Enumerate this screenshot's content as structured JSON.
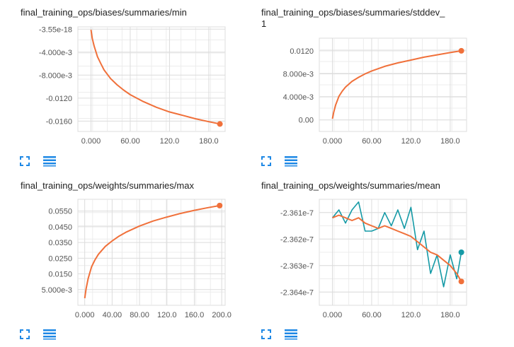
{
  "colors": {
    "smoothed": "#f0703a",
    "raw": "#f0703a",
    "teal": "#159aa6",
    "grid": "#dcdcdc",
    "icon": "#1e88e5"
  },
  "icons": {
    "expand": "fullscreen-icon",
    "data": "list-icon"
  },
  "charts": [
    {
      "title": "final_training_ops/biases/summaries/min"
    },
    {
      "title": "final_training_ops/biases/summaries/stddev_",
      "title2": "1"
    },
    {
      "title": "final_training_ops/weights/summaries/max"
    },
    {
      "title": "final_training_ops/weights/summaries/mean"
    }
  ],
  "chart_data": [
    {
      "type": "line",
      "title": "final_training_ops/biases/summaries/min",
      "xlim": [
        -20,
        205
      ],
      "ylim": [
        -0.0178,
        0.0004
      ],
      "xticks": [
        0,
        60,
        120,
        180
      ],
      "xtick_labels": [
        "0.000",
        "60.00",
        "120.0",
        "180.0"
      ],
      "yticks": [
        -3.55e-18,
        -0.004,
        -0.008,
        -0.012,
        -0.016
      ],
      "ytick_labels": [
        "-3.55e-18",
        "-4.000e-3",
        "-8.000e-3",
        "-0.0120",
        "-0.0160"
      ],
      "series": [
        {
          "x": [
            0,
            2,
            5,
            10,
            15,
            20,
            30,
            40,
            50,
            60,
            80,
            100,
            120,
            140,
            160,
            180,
            197
          ],
          "y": [
            -0.0001,
            -0.0016,
            -0.003,
            -0.0048,
            -0.006,
            -0.0071,
            -0.0086,
            -0.0097,
            -0.0106,
            -0.0114,
            -0.0126,
            -0.0136,
            -0.0144,
            -0.015,
            -0.0156,
            -0.0161,
            -0.0165
          ]
        }
      ]
    },
    {
      "type": "line",
      "title": "final_training_ops/biases/summaries/stddev_1",
      "xlim": [
        -20,
        205
      ],
      "ylim": [
        -0.002,
        0.0142
      ],
      "xticks": [
        0,
        60,
        120,
        180
      ],
      "xtick_labels": [
        "0.000",
        "60.00",
        "120.0",
        "180.0"
      ],
      "yticks": [
        0,
        0.004,
        0.008,
        0.012
      ],
      "ytick_labels": [
        "0.00",
        "4.000e-3",
        "8.000e-3",
        "0.0120"
      ],
      "series": [
        {
          "x": [
            0,
            2,
            5,
            10,
            15,
            20,
            30,
            40,
            50,
            60,
            80,
            100,
            120,
            140,
            160,
            180,
            197
          ],
          "y": [
            0.0002,
            0.0013,
            0.0026,
            0.0041,
            0.005,
            0.0057,
            0.0067,
            0.0074,
            0.008,
            0.0085,
            0.0093,
            0.0099,
            0.0104,
            0.0109,
            0.0113,
            0.0117,
            0.012
          ]
        }
      ]
    },
    {
      "type": "line",
      "title": "final_training_ops/weights/summaries/max",
      "xlim": [
        -10,
        205
      ],
      "ylim": [
        -0.005,
        0.0625
      ],
      "xticks": [
        0,
        40,
        80,
        120,
        160,
        200
      ],
      "xtick_labels": [
        "0.000",
        "40.00",
        "80.00",
        "120.0",
        "160.0",
        "200.0"
      ],
      "yticks": [
        0.005,
        0.015,
        0.025,
        0.035,
        0.045,
        0.055
      ],
      "ytick_labels": [
        "5.000e-3",
        "0.0150",
        "0.0250",
        "0.0350",
        "0.0450",
        "0.0550"
      ],
      "series": [
        {
          "x": [
            0,
            2,
            5,
            10,
            15,
            20,
            30,
            40,
            50,
            60,
            80,
            100,
            120,
            140,
            160,
            180,
            197
          ],
          "y": [
            -0.0005,
            0.0055,
            0.012,
            0.0195,
            0.024,
            0.0275,
            0.0325,
            0.036,
            0.039,
            0.0415,
            0.0455,
            0.0487,
            0.0512,
            0.0535,
            0.0555,
            0.0572,
            0.0585
          ]
        }
      ]
    },
    {
      "type": "line",
      "title": "final_training_ops/weights/summaries/mean",
      "xlim": [
        -20,
        205
      ],
      "ylim": [
        -2.3645e-07,
        -2.3605e-07
      ],
      "xticks": [
        0,
        60,
        120,
        180
      ],
      "xtick_labels": [
        "0.000",
        "60.00",
        "120.0",
        "180.0"
      ],
      "yticks": [
        -2.361e-07,
        -2.362e-07,
        -2.363e-07,
        -2.364e-07
      ],
      "ytick_labels": [
        "-2.361e-7",
        "-2.362e-7",
        "-2.363e-7",
        "-2.364e-7"
      ],
      "series": [
        {
          "name": "raw",
          "x": [
            0,
            10,
            20,
            30,
            40,
            50,
            60,
            70,
            80,
            90,
            100,
            110,
            120,
            130,
            140,
            150,
            160,
            170,
            180,
            190,
            197
          ],
          "y": [
            -2.3612e-07,
            -2.3609e-07,
            -2.3614e-07,
            -2.3609e-07,
            -2.3606e-07,
            -2.3617e-07,
            -2.3617e-07,
            -2.3616e-07,
            -2.361e-07,
            -2.3615e-07,
            -2.3609e-07,
            -2.3616e-07,
            -2.3608e-07,
            -2.3624e-07,
            -2.3617e-07,
            -2.3633e-07,
            -2.3626e-07,
            -2.3638e-07,
            -2.3626e-07,
            -2.3635e-07,
            -2.3625e-07
          ]
        },
        {
          "name": "smoothed",
          "x": [
            0,
            10,
            20,
            30,
            40,
            50,
            60,
            70,
            80,
            90,
            100,
            110,
            120,
            130,
            140,
            150,
            160,
            170,
            180,
            190,
            197
          ],
          "y": [
            -2.3612e-07,
            -2.3611e-07,
            -2.3612e-07,
            -2.3613e-07,
            -2.3612e-07,
            -2.3614e-07,
            -2.3615e-07,
            -2.3616e-07,
            -2.3615e-07,
            -2.3616e-07,
            -2.3617e-07,
            -2.3618e-07,
            -2.3619e-07,
            -2.3621e-07,
            -2.3623e-07,
            -2.3625e-07,
            -2.3626e-07,
            -2.3628e-07,
            -2.363e-07,
            -2.3633e-07,
            -2.3636e-07
          ]
        }
      ]
    }
  ]
}
